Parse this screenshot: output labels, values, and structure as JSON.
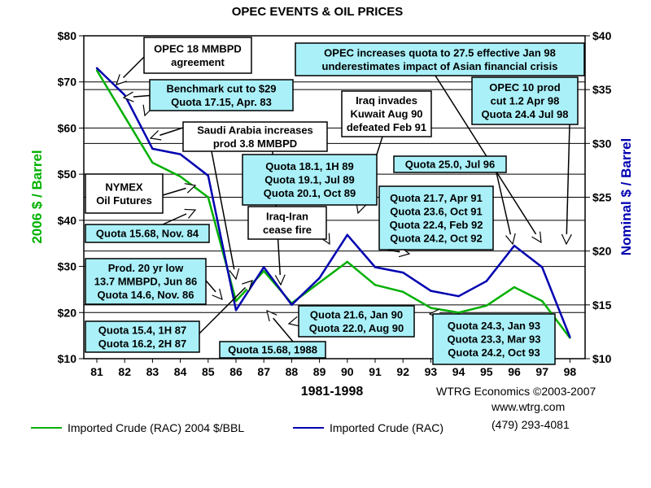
{
  "chart_data": {
    "type": "line",
    "title": "OPEC EVENTS &  OIL PRICES",
    "xlabel": "1981-1998",
    "ylabel_left": "2006 $ / Barrel",
    "ylabel_right": "Nominal $ / Barrel",
    "categories": [
      "81",
      "82",
      "83",
      "84",
      "85",
      "86",
      "87",
      "88",
      "89",
      "90",
      "91",
      "92",
      "93",
      "94",
      "95",
      "96",
      "97",
      "98"
    ],
    "y_left_ticks": [
      "$10",
      "$20",
      "$30",
      "$40",
      "$50",
      "$60",
      "$70",
      "$80"
    ],
    "y_right_ticks": [
      "$10",
      "$15",
      "$20",
      "$25",
      "$30",
      "$35",
      "$40"
    ],
    "ylim_left": [
      10,
      80
    ],
    "ylim_right": [
      10,
      40
    ],
    "grid": "horizontal",
    "legend_position": "bottom",
    "colors": {
      "real": "#00b000",
      "nominal": "#0000b0",
      "box": "#aaf0f8"
    },
    "series": [
      {
        "name": "Imported Crude (RAC) 2004 $/BBL",
        "axis": "left",
        "color": "#00b000",
        "values": [
          72.5,
          62.5,
          52.5,
          49.5,
          45,
          22.5,
          29,
          22,
          26.5,
          31,
          26,
          24.5,
          21,
          20,
          21.5,
          25.5,
          22.5,
          14.5
        ]
      },
      {
        "name": "Imported Crude (RAC)",
        "axis": "right",
        "color": "#0000b0",
        "values": [
          37,
          34.5,
          29.5,
          29,
          27,
          14.5,
          18.5,
          15,
          17.5,
          21.5,
          18.5,
          18,
          16.3,
          15.8,
          17.2,
          20.5,
          18.5,
          12
        ]
      }
    ]
  },
  "annotations": [
    {
      "id": "opec18",
      "lines": [
        "OPEC 18 MMBPD",
        "agreement"
      ],
      "box": "white"
    },
    {
      "id": "benchmark",
      "lines": [
        "Benchmark cut to $29",
        "Quota 17.15, Apr. 83"
      ],
      "box": "cyan"
    },
    {
      "id": "saudi",
      "lines": [
        "Saudi Arabia increases",
        "prod 3.8 MMBPD"
      ],
      "box": "white"
    },
    {
      "id": "nymex",
      "lines": [
        "NYMEX",
        "Oil Futures"
      ],
      "box": "white"
    },
    {
      "id": "q1568",
      "lines": [
        "Quota 15.68, Nov. 84"
      ],
      "box": "cyan"
    },
    {
      "id": "prod20",
      "lines": [
        "Prod. 20 yr low",
        "13.7 MMBPD, Jun 86",
        "Quota 14.6, Nov. 86"
      ],
      "box": "cyan"
    },
    {
      "id": "q154",
      "lines": [
        "Quota 15.4, 1H 87",
        "Quota 16.2, 2H 87"
      ],
      "box": "cyan"
    },
    {
      "id": "q1988",
      "lines": [
        "Quota 15.68, 1988"
      ],
      "box": "cyan"
    },
    {
      "id": "q181",
      "lines": [
        "Quota 18.1, 1H 89",
        "Quota 19.1, Jul 89",
        "Quota 20.1, Oct 89"
      ],
      "box": "cyan"
    },
    {
      "id": "iraqiran",
      "lines": [
        "Iraq-Iran",
        "cease fire"
      ],
      "box": "white"
    },
    {
      "id": "iraqkuwait",
      "lines": [
        "Iraq invades",
        "Kuwait Aug 90",
        "defeated Feb 91"
      ],
      "box": "white"
    },
    {
      "id": "opec275",
      "lines": [
        "OPEC increases quota to 27.5 effective Jan 98",
        "underestimates impact of Asian financial crisis"
      ],
      "box": "cyan"
    },
    {
      "id": "opec10",
      "lines": [
        "OPEC 10 prod",
        "cut 1.2 Apr 98",
        "Quota 24.4 Jul 98"
      ],
      "box": "cyan"
    },
    {
      "id": "q250",
      "lines": [
        "Quota 25.0, Jul 96"
      ],
      "box": "cyan"
    },
    {
      "id": "q217",
      "lines": [
        "Quota 21.7, Apr 91",
        "Quota 23.6, Oct 91",
        "Quota 22.4, Feb 92",
        "Quota 24.2, Oct 92"
      ],
      "box": "cyan"
    },
    {
      "id": "q216",
      "lines": [
        "Quota 21.6, Jan 90",
        "Quota 22.0, Aug 90"
      ],
      "box": "cyan"
    },
    {
      "id": "q243",
      "lines": [
        "Quota 24.3, Jan 93",
        "Quota 23.3, Mar 93",
        "Quota 24.2, Oct 93"
      ],
      "box": "cyan"
    }
  ],
  "credits": [
    "WTRG Economics  ©2003-2007",
    "www.wtrg.com",
    "(479) 293-4081"
  ]
}
